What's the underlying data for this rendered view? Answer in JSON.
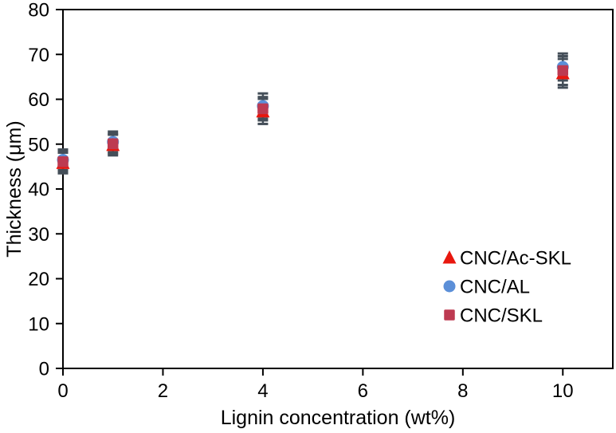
{
  "chart_data": {
    "type": "scatter",
    "title": "",
    "xlabel": "Lignin concentration (wt%)",
    "ylabel": "Thickness (μm)",
    "xlim": [
      0,
      11
    ],
    "ylim": [
      0,
      80
    ],
    "x_ticks": [
      0,
      2,
      4,
      6,
      8,
      10
    ],
    "y_ticks": [
      0,
      10,
      20,
      30,
      40,
      50,
      60,
      70,
      80
    ],
    "grid": false,
    "legend_position": "inside-right",
    "axis_color": "#000000",
    "error_bar_color": "#454f59",
    "x": [
      0,
      1,
      4,
      10
    ],
    "series": [
      {
        "name": "CNC/AL",
        "marker": "circle",
        "color": "#5b8fd8",
        "values": [
          46.5,
          50.5,
          58.5,
          67.2
        ],
        "errors": [
          2.3,
          2.3,
          2.8,
          3.0
        ]
      },
      {
        "name": "CNC/Ac-SKL",
        "marker": "triangle",
        "color": "#e8170e",
        "values": [
          45.8,
          49.8,
          57.3,
          65.8
        ],
        "errors": [
          2.3,
          2.3,
          2.8,
          3.2
        ]
      },
      {
        "name": "CNC/SKL",
        "marker": "square",
        "color": "#bd3a51",
        "values": [
          46.1,
          50.1,
          57.9,
          66.4
        ],
        "errors": [
          2.2,
          2.2,
          2.6,
          3.2
        ]
      }
    ],
    "legend": [
      {
        "label": "CNC/Ac-SKL",
        "marker": "triangle",
        "color": "#e8170e"
      },
      {
        "label": "CNC/AL",
        "marker": "circle",
        "color": "#5b8fd8"
      },
      {
        "label": "CNC/SKL",
        "marker": "square",
        "color": "#bd3a51"
      }
    ]
  }
}
